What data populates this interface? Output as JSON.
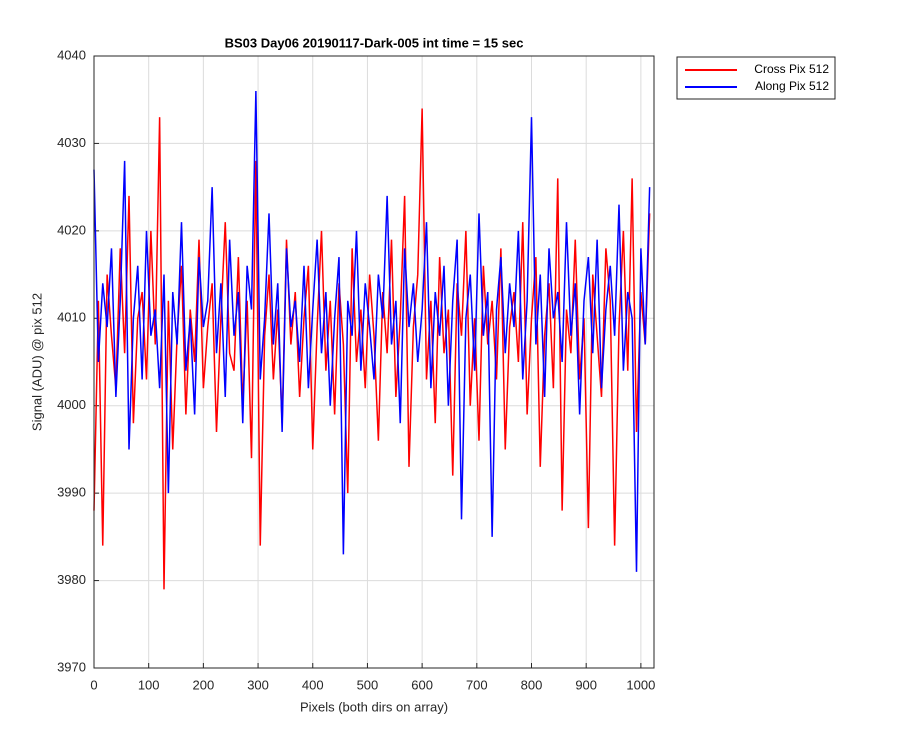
{
  "chart_data": {
    "type": "line",
    "title": "BS03 Day06 20190117-Dark-005 int time = 15 sec",
    "xlabel": "Pixels (both dirs on array)",
    "ylabel": "Signal (ADU) @ pix 512",
    "xlim": [
      0,
      1024
    ],
    "xticks": [
      0,
      100,
      200,
      300,
      400,
      500,
      600,
      700,
      800,
      900,
      1000
    ],
    "ylim": [
      3970,
      4040
    ],
    "yticks": [
      3970,
      3980,
      3990,
      4000,
      4010,
      4020,
      4030,
      4040
    ],
    "grid": true,
    "legend": "outside-top-right",
    "x": [
      0,
      8,
      16,
      24,
      32,
      40,
      48,
      56,
      64,
      72,
      80,
      88,
      96,
      104,
      112,
      120,
      128,
      136,
      144,
      152,
      160,
      168,
      176,
      184,
      192,
      200,
      208,
      216,
      224,
      232,
      240,
      248,
      256,
      264,
      272,
      280,
      288,
      296,
      304,
      312,
      320,
      328,
      336,
      344,
      352,
      360,
      368,
      376,
      384,
      392,
      400,
      408,
      416,
      424,
      432,
      440,
      448,
      456,
      464,
      472,
      480,
      488,
      496,
      504,
      512,
      520,
      528,
      536,
      544,
      552,
      560,
      568,
      576,
      584,
      592,
      600,
      608,
      616,
      624,
      632,
      640,
      648,
      656,
      664,
      672,
      680,
      688,
      696,
      704,
      712,
      720,
      728,
      736,
      744,
      752,
      760,
      768,
      776,
      784,
      792,
      800,
      808,
      816,
      824,
      832,
      840,
      848,
      856,
      864,
      872,
      880,
      888,
      896,
      904,
      912,
      920,
      928,
      936,
      944,
      952,
      960,
      968,
      976,
      984,
      992,
      1000,
      1008,
      1016
    ],
    "series": [
      {
        "name": "Cross Pix 512",
        "color": "#ff0000",
        "values": [
          3988,
          4012,
          3984,
          4015,
          4008,
          4002,
          4018,
          4006,
          4024,
          3998,
          4010,
          4013,
          4003,
          4020,
          4007,
          4033,
          3979,
          4012,
          3995,
          4008,
          4016,
          3999,
          4011,
          4005,
          4019,
          4002,
          4009,
          4014,
          3997,
          4010,
          4021,
          4006,
          4004,
          4017,
          4000,
          4012,
          3994,
          4028,
          3984,
          4008,
          4015,
          4003,
          4011,
          3998,
          4019,
          4007,
          4013,
          4001,
          4010,
          4016,
          3995,
          4009,
          4020,
          4004,
          4012,
          3999,
          4014,
          4007,
          3990,
          4018,
          4005,
          4011,
          4002,
          4015,
          4008,
          3996,
          4013,
          4006,
          4019,
          4001,
          4010,
          4024,
          3993,
          4009,
          4015,
          4034,
          4003,
          4012,
          3998,
          4017,
          4006,
          4011,
          3992,
          4014,
          4008,
          4020,
          4000,
          4010,
          3996,
          4016,
          4007,
          4012,
          4003,
          4018,
          3995,
          4009,
          4013,
          4005,
          4021,
          3999,
          4010,
          4017,
          3993,
          4008,
          4014,
          4002,
          4026,
          3988,
          4011,
          4006,
          4019,
          4003,
          4010,
          3986,
          4015,
          4008,
          4001,
          4018,
          4012,
          3984,
          4009,
          4020,
          4004,
          4026,
          3997,
          4013,
          4007,
          4022
        ]
      },
      {
        "name": "Along Pix 512",
        "color": "#0000ff",
        "values": [
          4027,
          4005,
          4014,
          4009,
          4018,
          4001,
          4012,
          4028,
          3995,
          4010,
          4016,
          4003,
          4020,
          4008,
          4011,
          4002,
          4015,
          3990,
          4013,
          4007,
          4021,
          4004,
          4010,
          3999,
          4017,
          4009,
          4012,
          4025,
          4006,
          4014,
          4001,
          4019,
          4008,
          4013,
          3998,
          4016,
          4011,
          4036,
          4003,
          4010,
          4022,
          4007,
          4014,
          3997,
          4018,
          4009,
          4012,
          4005,
          4016,
          4002,
          4011,
          4019,
          4006,
          4013,
          4000,
          4010,
          4017,
          3983,
          4012,
          4008,
          4020,
          4004,
          4014,
          4009,
          4003,
          4015,
          4010,
          4024,
          4007,
          4012,
          3998,
          4018,
          4009,
          4014,
          4005,
          4011,
          4021,
          4002,
          4013,
          4008,
          4016,
          4000,
          4012,
          4019,
          3987,
          4010,
          4015,
          4004,
          4022,
          4008,
          4013,
          3985,
          4011,
          4017,
          4006,
          4014,
          4009,
          4020,
          4003,
          4012,
          4033,
          4007,
          4015,
          4001,
          4018,
          4010,
          4013,
          4005,
          4021,
          4008,
          4014,
          3999,
          4012,
          4017,
          4006,
          4019,
          4002,
          4011,
          4016,
          4008,
          4023,
          4004,
          4013,
          4010,
          3981,
          4018,
          4007,
          4025
        ]
      }
    ]
  }
}
